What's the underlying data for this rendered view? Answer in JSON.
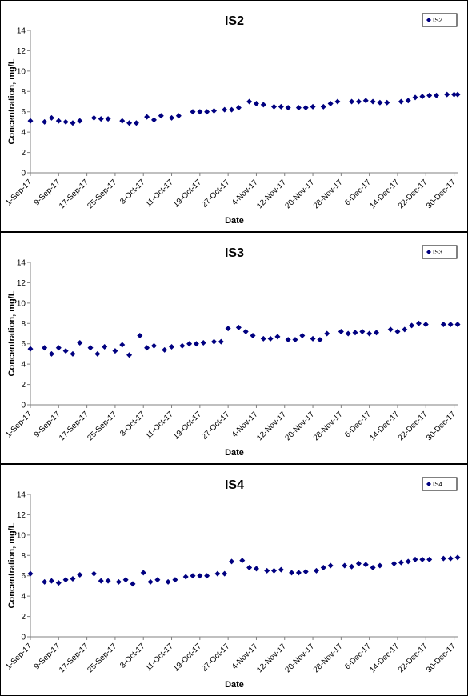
{
  "colors": {
    "marker": "#000080",
    "axis": "#808080",
    "text": "#000000",
    "background": "#ffffff"
  },
  "chart_data": [
    {
      "type": "scatter",
      "title": "IS2",
      "xlabel": "Date",
      "ylabel": "Concentration, mg/L",
      "ylim": [
        0,
        14
      ],
      "yticks": [
        "0",
        "2",
        "4",
        "6",
        "8",
        "10",
        "12",
        "14"
      ],
      "xlim": [
        "2017-09-01",
        "2017-12-31"
      ],
      "xtick_labels": [
        "1-Sep-17",
        "9-Sep-17",
        "17-Sep-17",
        "25-Sep-17",
        "3-Oct-17",
        "11-Oct-17",
        "19-Oct-17",
        "27-Oct-17",
        "4-Nov-17",
        "12-Nov-17",
        "20-Nov-17",
        "28-Nov-17",
        "6-Dec-17",
        "14-Dec-17",
        "22-Dec-17",
        "30-Dec-17"
      ],
      "grid": false,
      "legend": "top-right",
      "marker": "diamond",
      "series": [
        {
          "name": "IS2",
          "points": [
            [
              "2017-09-01",
              5.1
            ],
            [
              "2017-09-05",
              5.0
            ],
            [
              "2017-09-07",
              5.4
            ],
            [
              "2017-09-09",
              5.1
            ],
            [
              "2017-09-11",
              5.0
            ],
            [
              "2017-09-13",
              4.9
            ],
            [
              "2017-09-15",
              5.1
            ],
            [
              "2017-09-19",
              5.4
            ],
            [
              "2017-09-21",
              5.3
            ],
            [
              "2017-09-23",
              5.3
            ],
            [
              "2017-09-27",
              5.1
            ],
            [
              "2017-09-29",
              4.9
            ],
            [
              "2017-10-01",
              4.9
            ],
            [
              "2017-10-04",
              5.5
            ],
            [
              "2017-10-06",
              5.2
            ],
            [
              "2017-10-08",
              5.6
            ],
            [
              "2017-10-11",
              5.4
            ],
            [
              "2017-10-13",
              5.6
            ],
            [
              "2017-10-17",
              6.0
            ],
            [
              "2017-10-19",
              6.0
            ],
            [
              "2017-10-21",
              6.0
            ],
            [
              "2017-10-23",
              6.1
            ],
            [
              "2017-10-26",
              6.2
            ],
            [
              "2017-10-28",
              6.2
            ],
            [
              "2017-10-30",
              6.4
            ],
            [
              "2017-11-02",
              7.0
            ],
            [
              "2017-11-04",
              6.8
            ],
            [
              "2017-11-06",
              6.7
            ],
            [
              "2017-11-09",
              6.5
            ],
            [
              "2017-11-11",
              6.5
            ],
            [
              "2017-11-13",
              6.4
            ],
            [
              "2017-11-16",
              6.4
            ],
            [
              "2017-11-18",
              6.4
            ],
            [
              "2017-11-20",
              6.5
            ],
            [
              "2017-11-23",
              6.5
            ],
            [
              "2017-11-25",
              6.8
            ],
            [
              "2017-11-27",
              7.0
            ],
            [
              "2017-12-01",
              7.0
            ],
            [
              "2017-12-03",
              7.0
            ],
            [
              "2017-12-05",
              7.1
            ],
            [
              "2017-12-07",
              7.0
            ],
            [
              "2017-12-09",
              6.9
            ],
            [
              "2017-12-11",
              6.9
            ],
            [
              "2017-12-15",
              7.0
            ],
            [
              "2017-12-17",
              7.1
            ],
            [
              "2017-12-19",
              7.4
            ],
            [
              "2017-12-21",
              7.5
            ],
            [
              "2017-12-23",
              7.6
            ],
            [
              "2017-12-25",
              7.6
            ],
            [
              "2017-12-28",
              7.7
            ],
            [
              "2017-12-30",
              7.7
            ],
            [
              "2017-12-31",
              7.7
            ]
          ]
        }
      ]
    },
    {
      "type": "scatter",
      "title": "IS3",
      "xlabel": "Date",
      "ylabel": "Concentration, mg/L",
      "ylim": [
        0,
        14
      ],
      "yticks": [
        "0",
        "2",
        "4",
        "6",
        "8",
        "10",
        "12",
        "14"
      ],
      "xlim": [
        "2017-09-01",
        "2017-12-31"
      ],
      "xtick_labels": [
        "1-Sep-17",
        "9-Sep-17",
        "17-Sep-17",
        "25-Sep-17",
        "3-Oct-17",
        "11-Oct-17",
        "19-Oct-17",
        "27-Oct-17",
        "4-Nov-17",
        "12-Nov-17",
        "20-Nov-17",
        "28-Nov-17",
        "6-Dec-17",
        "14-Dec-17",
        "22-Dec-17",
        "30-Dec-17"
      ],
      "grid": false,
      "legend": "top-right",
      "marker": "diamond",
      "series": [
        {
          "name": "IS3",
          "points": [
            [
              "2017-09-01",
              5.5
            ],
            [
              "2017-09-05",
              5.6
            ],
            [
              "2017-09-07",
              5.0
            ],
            [
              "2017-09-09",
              5.6
            ],
            [
              "2017-09-11",
              5.3
            ],
            [
              "2017-09-13",
              5.0
            ],
            [
              "2017-09-15",
              6.1
            ],
            [
              "2017-09-18",
              5.6
            ],
            [
              "2017-09-20",
              5.0
            ],
            [
              "2017-09-22",
              5.7
            ],
            [
              "2017-09-25",
              5.3
            ],
            [
              "2017-09-27",
              5.9
            ],
            [
              "2017-09-29",
              4.9
            ],
            [
              "2017-10-02",
              6.8
            ],
            [
              "2017-10-04",
              5.6
            ],
            [
              "2017-10-06",
              5.8
            ],
            [
              "2017-10-09",
              5.4
            ],
            [
              "2017-10-11",
              5.7
            ],
            [
              "2017-10-14",
              5.8
            ],
            [
              "2017-10-16",
              6.0
            ],
            [
              "2017-10-18",
              6.0
            ],
            [
              "2017-10-20",
              6.1
            ],
            [
              "2017-10-23",
              6.2
            ],
            [
              "2017-10-25",
              6.2
            ],
            [
              "2017-10-27",
              7.5
            ],
            [
              "2017-10-30",
              7.6
            ],
            [
              "2017-11-01",
              7.2
            ],
            [
              "2017-11-03",
              6.8
            ],
            [
              "2017-11-06",
              6.5
            ],
            [
              "2017-11-08",
              6.5
            ],
            [
              "2017-11-10",
              6.7
            ],
            [
              "2017-11-13",
              6.4
            ],
            [
              "2017-11-15",
              6.4
            ],
            [
              "2017-11-17",
              6.8
            ],
            [
              "2017-11-20",
              6.5
            ],
            [
              "2017-11-22",
              6.4
            ],
            [
              "2017-11-24",
              7.0
            ],
            [
              "2017-11-28",
              7.2
            ],
            [
              "2017-11-30",
              7.0
            ],
            [
              "2017-12-02",
              7.1
            ],
            [
              "2017-12-04",
              7.2
            ],
            [
              "2017-12-06",
              7.0
            ],
            [
              "2017-12-08",
              7.1
            ],
            [
              "2017-12-12",
              7.4
            ],
            [
              "2017-12-14",
              7.2
            ],
            [
              "2017-12-16",
              7.4
            ],
            [
              "2017-12-18",
              7.8
            ],
            [
              "2017-12-20",
              8.0
            ],
            [
              "2017-12-22",
              7.9
            ],
            [
              "2017-12-27",
              7.9
            ],
            [
              "2017-12-29",
              7.9
            ],
            [
              "2017-12-31",
              7.9
            ]
          ]
        }
      ]
    },
    {
      "type": "scatter",
      "title": "IS4",
      "xlabel": "Date",
      "ylabel": "Concentration, mg/L",
      "ylim": [
        0,
        14
      ],
      "yticks": [
        "0",
        "2",
        "4",
        "6",
        "8",
        "10",
        "12",
        "14"
      ],
      "xlim": [
        "2017-09-01",
        "2017-12-31"
      ],
      "xtick_labels": [
        "1-Sep-17",
        "9-Sep-17",
        "17-Sep-17",
        "25-Sep-17",
        "3-Oct-17",
        "11-Oct-17",
        "19-Oct-17",
        "27-Oct-17",
        "4-Nov-17",
        "12-Nov-17",
        "20-Nov-17",
        "28-Nov-17",
        "6-Dec-17",
        "14-Dec-17",
        "22-Dec-17",
        "30-Dec-17"
      ],
      "grid": false,
      "legend": "top-right",
      "marker": "diamond",
      "series": [
        {
          "name": "IS4",
          "points": [
            [
              "2017-09-01",
              6.2
            ],
            [
              "2017-09-05",
              5.4
            ],
            [
              "2017-09-07",
              5.5
            ],
            [
              "2017-09-09",
              5.3
            ],
            [
              "2017-09-11",
              5.6
            ],
            [
              "2017-09-13",
              5.7
            ],
            [
              "2017-09-15",
              6.1
            ],
            [
              "2017-09-19",
              6.2
            ],
            [
              "2017-09-21",
              5.5
            ],
            [
              "2017-09-23",
              5.5
            ],
            [
              "2017-09-26",
              5.4
            ],
            [
              "2017-09-28",
              5.6
            ],
            [
              "2017-09-30",
              5.2
            ],
            [
              "2017-10-03",
              6.3
            ],
            [
              "2017-10-05",
              5.4
            ],
            [
              "2017-10-07",
              5.6
            ],
            [
              "2017-10-10",
              5.4
            ],
            [
              "2017-10-12",
              5.6
            ],
            [
              "2017-10-15",
              5.9
            ],
            [
              "2017-10-17",
              6.0
            ],
            [
              "2017-10-19",
              6.0
            ],
            [
              "2017-10-21",
              6.0
            ],
            [
              "2017-10-24",
              6.2
            ],
            [
              "2017-10-26",
              6.2
            ],
            [
              "2017-10-28",
              7.4
            ],
            [
              "2017-10-31",
              7.5
            ],
            [
              "2017-11-02",
              6.8
            ],
            [
              "2017-11-04",
              6.7
            ],
            [
              "2017-11-07",
              6.5
            ],
            [
              "2017-11-09",
              6.5
            ],
            [
              "2017-11-11",
              6.6
            ],
            [
              "2017-11-14",
              6.3
            ],
            [
              "2017-11-16",
              6.3
            ],
            [
              "2017-11-18",
              6.4
            ],
            [
              "2017-11-21",
              6.5
            ],
            [
              "2017-11-23",
              6.8
            ],
            [
              "2017-11-25",
              7.0
            ],
            [
              "2017-11-29",
              7.0
            ],
            [
              "2017-12-01",
              6.9
            ],
            [
              "2017-12-03",
              7.2
            ],
            [
              "2017-12-05",
              7.1
            ],
            [
              "2017-12-07",
              6.8
            ],
            [
              "2017-12-09",
              7.0
            ],
            [
              "2017-12-13",
              7.2
            ],
            [
              "2017-12-15",
              7.3
            ],
            [
              "2017-12-17",
              7.4
            ],
            [
              "2017-12-19",
              7.6
            ],
            [
              "2017-12-21",
              7.6
            ],
            [
              "2017-12-23",
              7.6
            ],
            [
              "2017-12-27",
              7.7
            ],
            [
              "2017-12-29",
              7.7
            ],
            [
              "2017-12-31",
              7.8
            ]
          ]
        }
      ]
    }
  ]
}
